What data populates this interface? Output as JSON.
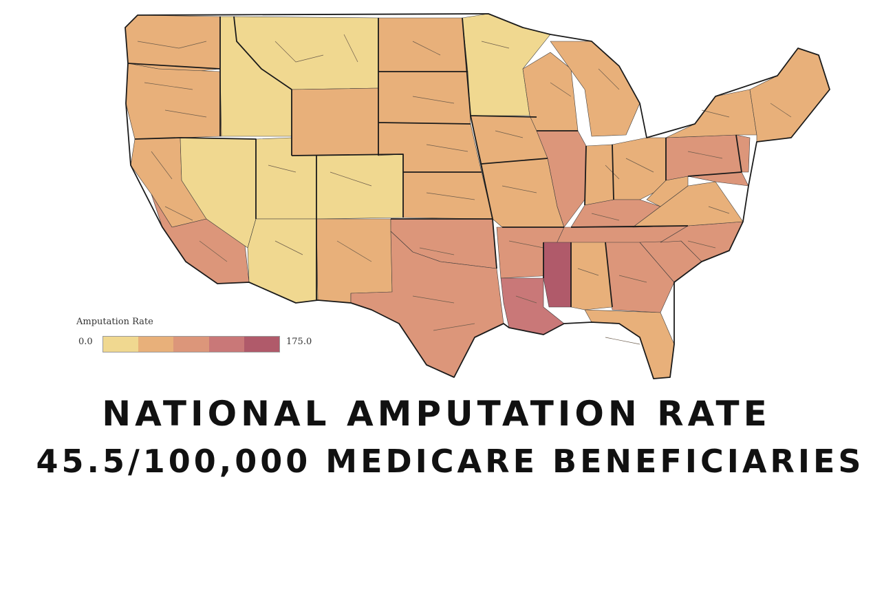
{
  "legend": {
    "title": "Amputation Rate",
    "min_label": "0.0",
    "max_label": "175.0",
    "colors": [
      "#f0d890",
      "#e8b07a",
      "#dc967a",
      "#c97878",
      "#b05a6a"
    ]
  },
  "headline": {
    "line1": "NATIONAL AMPUTATION RATE",
    "line2": "45.5/100,000 MEDICARE BENEFICIARIES"
  }
}
